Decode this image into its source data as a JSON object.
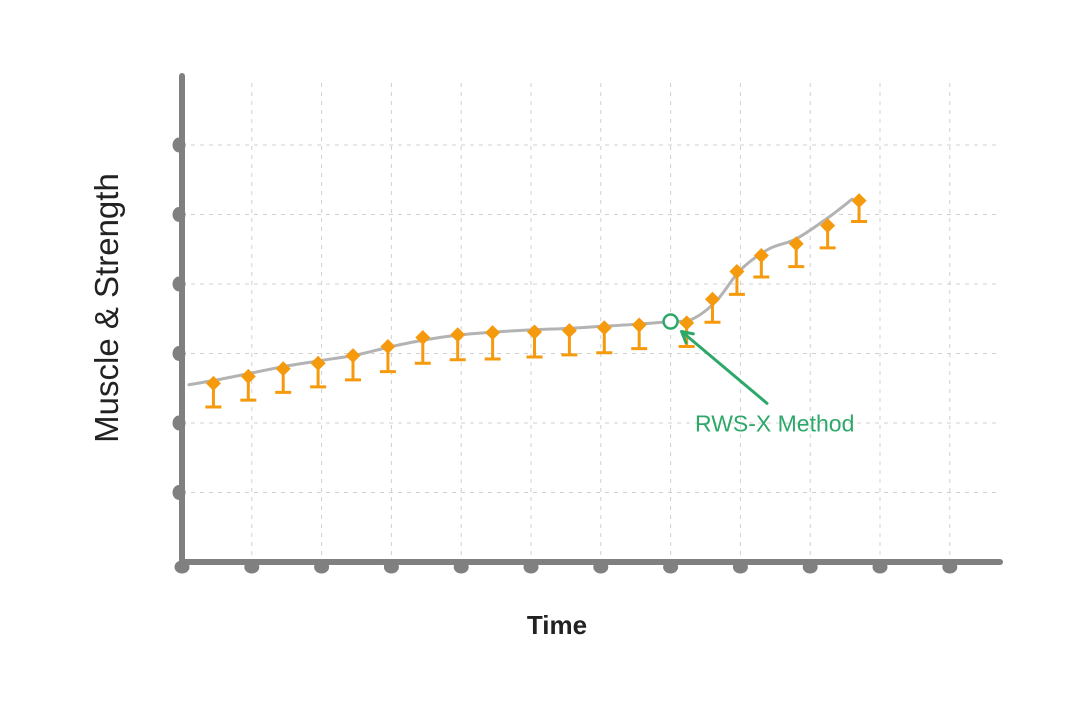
{
  "chart_data": {
    "type": "line",
    "title": "",
    "xlabel": "Time",
    "ylabel": "Muscle & Strength",
    "xlim": [
      0,
      11.65
    ],
    "ylim": [
      0,
      6
    ],
    "x_ticks": [
      0,
      1,
      2,
      3,
      4,
      5,
      6,
      7,
      8,
      9,
      10,
      11
    ],
    "y_ticks": [
      1,
      2,
      3,
      4,
      5,
      6
    ],
    "grid": true,
    "series": [
      {
        "line": {
          "x": [
            0.1,
            0.5,
            1.0,
            1.5,
            2.0,
            2.5,
            3.0,
            3.5,
            4.0,
            4.5,
            5.0,
            5.5,
            6.0,
            6.5,
            7.0,
            7.3,
            7.65,
            8.0,
            8.4,
            8.8,
            9.25,
            9.6
          ],
          "y": [
            2.55,
            2.62,
            2.72,
            2.82,
            2.9,
            2.98,
            3.1,
            3.2,
            3.27,
            3.31,
            3.34,
            3.36,
            3.39,
            3.42,
            3.46,
            3.49,
            3.75,
            4.2,
            4.5,
            4.65,
            4.95,
            5.22
          ]
        },
        "markers": {
          "x": [
            0.45,
            0.95,
            1.45,
            1.95,
            2.45,
            2.95,
            3.45,
            3.95,
            4.45,
            5.05,
            5.55,
            6.05,
            6.55,
            7.23,
            7.6,
            7.95,
            8.3,
            8.8,
            9.25,
            9.7
          ],
          "y": [
            2.57,
            2.67,
            2.78,
            2.86,
            2.97,
            3.1,
            3.23,
            3.27,
            3.3,
            3.31,
            3.33,
            3.37,
            3.41,
            3.44,
            3.78,
            4.18,
            4.41,
            4.58,
            4.84,
            5.2
          ],
          "y_lower": [
            2.23,
            2.33,
            2.44,
            2.52,
            2.62,
            2.74,
            2.86,
            2.91,
            2.92,
            2.95,
            2.98,
            3.01,
            3.07,
            3.1,
            3.45,
            3.85,
            4.1,
            4.25,
            4.52,
            4.9
          ]
        },
        "color": "#f59a0c",
        "line_color": "#b3b3b3"
      }
    ],
    "annotations": [
      {
        "text": "RWS-X Method",
        "point": {
          "x": 7.0,
          "y": 3.46
        },
        "text_at": {
          "x": 7.35,
          "y": 1.88
        },
        "color": "#2ea86a"
      }
    ],
    "colors": {
      "axis": "#808080",
      "grid": "#d0d0d0",
      "marker": "#f59a0c",
      "annotation": "#2ea86a"
    }
  }
}
